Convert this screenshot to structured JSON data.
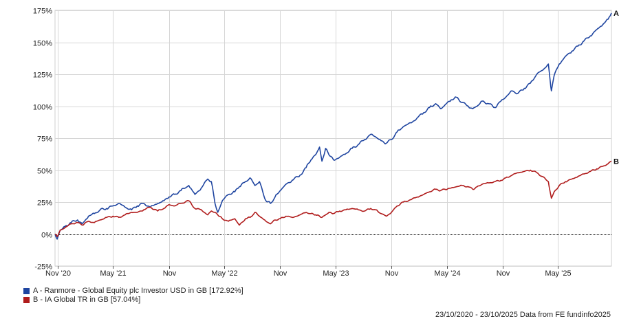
{
  "chart_data": {
    "type": "line",
    "ylim": [
      -25,
      175
    ],
    "yticks": [
      -25,
      0,
      25,
      50,
      75,
      100,
      125,
      150,
      175
    ],
    "ytick_labels": [
      "-25%",
      "0%",
      "25%",
      "50%",
      "75%",
      "100%",
      "125%",
      "150%",
      "175%"
    ],
    "xlim": [
      "2020-10-23",
      "2025-10-23"
    ],
    "xticks": [
      {
        "date": "2020-11-01",
        "label": "Nov '20"
      },
      {
        "date": "2021-05-01",
        "label": "May '21"
      },
      {
        "date": "2021-11-01",
        "label": "Nov"
      },
      {
        "date": "2022-05-01",
        "label": "May '22"
      },
      {
        "date": "2022-11-01",
        "label": "Nov"
      },
      {
        "date": "2023-05-01",
        "label": "May '23"
      },
      {
        "date": "2023-11-01",
        "label": "Nov"
      },
      {
        "date": "2024-05-01",
        "label": "May '24"
      },
      {
        "date": "2024-11-01",
        "label": "Nov"
      },
      {
        "date": "2025-05-01",
        "label": "May '25"
      }
    ],
    "grid": true,
    "zero_line": "dotted",
    "series": [
      {
        "id": "A",
        "name": "A - Ranmore - Global Equity plc Investor USD in GB [172.92%]",
        "color": "#1f45a0",
        "points": [
          [
            "2020-10-23",
            0
          ],
          [
            "2020-10-30",
            -4
          ],
          [
            "2020-11-09",
            3
          ],
          [
            "2020-11-25",
            6
          ],
          [
            "2020-12-15",
            9
          ],
          [
            "2021-01-05",
            11
          ],
          [
            "2021-01-20",
            8
          ],
          [
            "2021-02-10",
            14
          ],
          [
            "2021-03-01",
            16
          ],
          [
            "2021-03-20",
            19
          ],
          [
            "2021-04-10",
            20
          ],
          [
            "2021-05-01",
            22
          ],
          [
            "2021-05-20",
            24
          ],
          [
            "2021-06-10",
            21
          ],
          [
            "2021-07-01",
            19
          ],
          [
            "2021-07-20",
            22
          ],
          [
            "2021-08-10",
            24
          ],
          [
            "2021-09-01",
            21
          ],
          [
            "2021-09-25",
            24
          ],
          [
            "2021-10-15",
            26
          ],
          [
            "2021-11-01",
            29
          ],
          [
            "2021-11-20",
            31
          ],
          [
            "2021-12-10",
            34
          ],
          [
            "2022-01-05",
            38
          ],
          [
            "2022-01-25",
            31
          ],
          [
            "2022-02-15",
            36
          ],
          [
            "2022-03-08",
            43
          ],
          [
            "2022-03-20",
            41
          ],
          [
            "2022-04-01",
            24
          ],
          [
            "2022-04-10",
            17
          ],
          [
            "2022-04-25",
            26
          ],
          [
            "2022-05-15",
            31
          ],
          [
            "2022-06-05",
            33
          ],
          [
            "2022-06-20",
            37
          ],
          [
            "2022-07-10",
            41
          ],
          [
            "2022-07-25",
            44
          ],
          [
            "2022-08-10",
            38
          ],
          [
            "2022-08-25",
            41
          ],
          [
            "2022-09-15",
            26
          ],
          [
            "2022-09-30",
            24
          ],
          [
            "2022-10-15",
            29
          ],
          [
            "2022-11-01",
            34
          ],
          [
            "2022-11-20",
            39
          ],
          [
            "2022-12-10",
            42
          ],
          [
            "2023-01-05",
            46
          ],
          [
            "2023-01-25",
            52
          ],
          [
            "2023-02-10",
            58
          ],
          [
            "2023-02-25",
            62
          ],
          [
            "2023-03-10",
            68
          ],
          [
            "2023-03-18",
            57
          ],
          [
            "2023-03-30",
            67
          ],
          [
            "2023-04-10",
            62
          ],
          [
            "2023-04-25",
            58
          ],
          [
            "2023-05-15",
            60
          ],
          [
            "2023-06-05",
            63
          ],
          [
            "2023-06-25",
            67
          ],
          [
            "2023-07-15",
            70
          ],
          [
            "2023-08-05",
            74
          ],
          [
            "2023-08-25",
            78
          ],
          [
            "2023-09-10",
            76
          ],
          [
            "2023-09-28",
            73
          ],
          [
            "2023-10-15",
            71
          ],
          [
            "2023-11-01",
            74
          ],
          [
            "2023-11-20",
            80
          ],
          [
            "2023-12-10",
            84
          ],
          [
            "2024-01-05",
            87
          ],
          [
            "2024-01-25",
            91
          ],
          [
            "2024-02-15",
            95
          ],
          [
            "2024-03-05",
            99
          ],
          [
            "2024-03-25",
            102
          ],
          [
            "2024-04-10",
            98
          ],
          [
            "2024-04-25",
            101
          ],
          [
            "2024-05-15",
            105
          ],
          [
            "2024-06-01",
            107
          ],
          [
            "2024-06-20",
            103
          ],
          [
            "2024-07-10",
            100
          ],
          [
            "2024-07-25",
            98
          ],
          [
            "2024-08-08",
            100
          ],
          [
            "2024-08-25",
            104
          ],
          [
            "2024-09-15",
            102
          ],
          [
            "2024-10-05",
            99
          ],
          [
            "2024-10-25",
            104
          ],
          [
            "2024-11-10",
            107
          ],
          [
            "2024-12-01",
            112
          ],
          [
            "2024-12-20",
            110
          ],
          [
            "2025-01-10",
            114
          ],
          [
            "2025-01-30",
            118
          ],
          [
            "2025-02-20",
            125
          ],
          [
            "2025-03-10",
            128
          ],
          [
            "2025-03-30",
            133
          ],
          [
            "2025-04-05",
            120
          ],
          [
            "2025-04-09",
            112
          ],
          [
            "2025-04-18",
            124
          ],
          [
            "2025-05-05",
            133
          ],
          [
            "2025-05-25",
            139
          ],
          [
            "2025-06-15",
            143
          ],
          [
            "2025-07-05",
            147
          ],
          [
            "2025-07-25",
            151
          ],
          [
            "2025-08-15",
            155
          ],
          [
            "2025-09-05",
            160
          ],
          [
            "2025-09-25",
            164
          ],
          [
            "2025-10-12",
            168
          ],
          [
            "2025-10-23",
            172.92
          ]
        ]
      },
      {
        "id": "B",
        "name": "B - IA Global TR in GB [57.04%]",
        "color": "#b01c1c",
        "points": [
          [
            "2020-10-23",
            0
          ],
          [
            "2020-10-30",
            -2
          ],
          [
            "2020-11-09",
            3
          ],
          [
            "2020-11-25",
            5
          ],
          [
            "2020-12-15",
            8
          ],
          [
            "2021-01-05",
            9
          ],
          [
            "2021-01-20",
            7
          ],
          [
            "2021-02-10",
            10
          ],
          [
            "2021-03-01",
            9
          ],
          [
            "2021-03-20",
            11
          ],
          [
            "2021-04-10",
            13
          ],
          [
            "2021-05-01",
            14
          ],
          [
            "2021-05-20",
            13
          ],
          [
            "2021-06-10",
            15
          ],
          [
            "2021-07-01",
            17
          ],
          [
            "2021-07-20",
            17
          ],
          [
            "2021-08-10",
            19
          ],
          [
            "2021-09-01",
            21
          ],
          [
            "2021-09-25",
            18
          ],
          [
            "2021-10-15",
            20
          ],
          [
            "2021-11-01",
            23
          ],
          [
            "2021-11-20",
            22
          ],
          [
            "2021-12-10",
            24
          ],
          [
            "2022-01-05",
            26
          ],
          [
            "2022-01-25",
            20
          ],
          [
            "2022-02-15",
            19
          ],
          [
            "2022-03-08",
            15
          ],
          [
            "2022-03-20",
            18
          ],
          [
            "2022-04-01",
            17
          ],
          [
            "2022-04-10",
            15
          ],
          [
            "2022-04-25",
            12
          ],
          [
            "2022-05-15",
            10
          ],
          [
            "2022-06-05",
            12
          ],
          [
            "2022-06-20",
            7
          ],
          [
            "2022-07-10",
            12
          ],
          [
            "2022-07-25",
            13
          ],
          [
            "2022-08-10",
            17
          ],
          [
            "2022-08-25",
            14
          ],
          [
            "2022-09-15",
            10
          ],
          [
            "2022-09-30",
            8
          ],
          [
            "2022-10-15",
            11
          ],
          [
            "2022-11-01",
            12
          ],
          [
            "2022-11-20",
            14
          ],
          [
            "2022-12-10",
            13
          ],
          [
            "2023-01-05",
            15
          ],
          [
            "2023-01-25",
            17
          ],
          [
            "2023-02-10",
            16
          ],
          [
            "2023-02-25",
            15
          ],
          [
            "2023-03-10",
            14
          ],
          [
            "2023-03-18",
            13
          ],
          [
            "2023-03-30",
            15
          ],
          [
            "2023-04-10",
            17
          ],
          [
            "2023-04-25",
            16
          ],
          [
            "2023-05-15",
            18
          ],
          [
            "2023-06-05",
            19
          ],
          [
            "2023-06-25",
            20
          ],
          [
            "2023-07-15",
            19
          ],
          [
            "2023-08-05",
            18
          ],
          [
            "2023-08-25",
            20
          ],
          [
            "2023-09-10",
            19
          ],
          [
            "2023-09-28",
            16
          ],
          [
            "2023-10-15",
            14
          ],
          [
            "2023-11-01",
            17
          ],
          [
            "2023-11-20",
            22
          ],
          [
            "2023-12-10",
            25
          ],
          [
            "2024-01-05",
            27
          ],
          [
            "2024-01-25",
            29
          ],
          [
            "2024-02-15",
            31
          ],
          [
            "2024-03-05",
            33
          ],
          [
            "2024-03-25",
            35
          ],
          [
            "2024-04-10",
            34
          ],
          [
            "2024-04-25",
            35
          ],
          [
            "2024-05-15",
            36
          ],
          [
            "2024-06-01",
            37
          ],
          [
            "2024-06-20",
            38
          ],
          [
            "2024-07-10",
            37
          ],
          [
            "2024-07-25",
            35
          ],
          [
            "2024-08-08",
            37
          ],
          [
            "2024-08-25",
            39
          ],
          [
            "2024-09-15",
            40
          ],
          [
            "2024-10-05",
            41
          ],
          [
            "2024-10-25",
            42
          ],
          [
            "2024-11-10",
            44
          ],
          [
            "2024-12-01",
            46
          ],
          [
            "2024-12-20",
            48
          ],
          [
            "2025-01-10",
            49
          ],
          [
            "2025-01-30",
            50
          ],
          [
            "2025-02-20",
            48
          ],
          [
            "2025-03-10",
            45
          ],
          [
            "2025-03-30",
            41
          ],
          [
            "2025-04-05",
            33
          ],
          [
            "2025-04-09",
            28
          ],
          [
            "2025-04-18",
            33
          ],
          [
            "2025-05-05",
            38
          ],
          [
            "2025-05-25",
            41
          ],
          [
            "2025-06-15",
            43
          ],
          [
            "2025-07-05",
            45
          ],
          [
            "2025-07-25",
            47
          ],
          [
            "2025-08-15",
            49
          ],
          [
            "2025-09-05",
            51
          ],
          [
            "2025-09-25",
            53
          ],
          [
            "2025-10-12",
            55
          ],
          [
            "2025-10-23",
            57.04
          ]
        ]
      }
    ]
  },
  "legend": {
    "items": [
      {
        "label": "A - Ranmore - Global Equity plc Investor USD in GB [172.92%]",
        "color": "#1f45a0"
      },
      {
        "label": "B - IA Global TR in GB [57.04%]",
        "color": "#b01c1c"
      }
    ]
  },
  "footer": {
    "text": "23/10/2020 - 23/10/2025 Data from FE fundinfo2025"
  }
}
